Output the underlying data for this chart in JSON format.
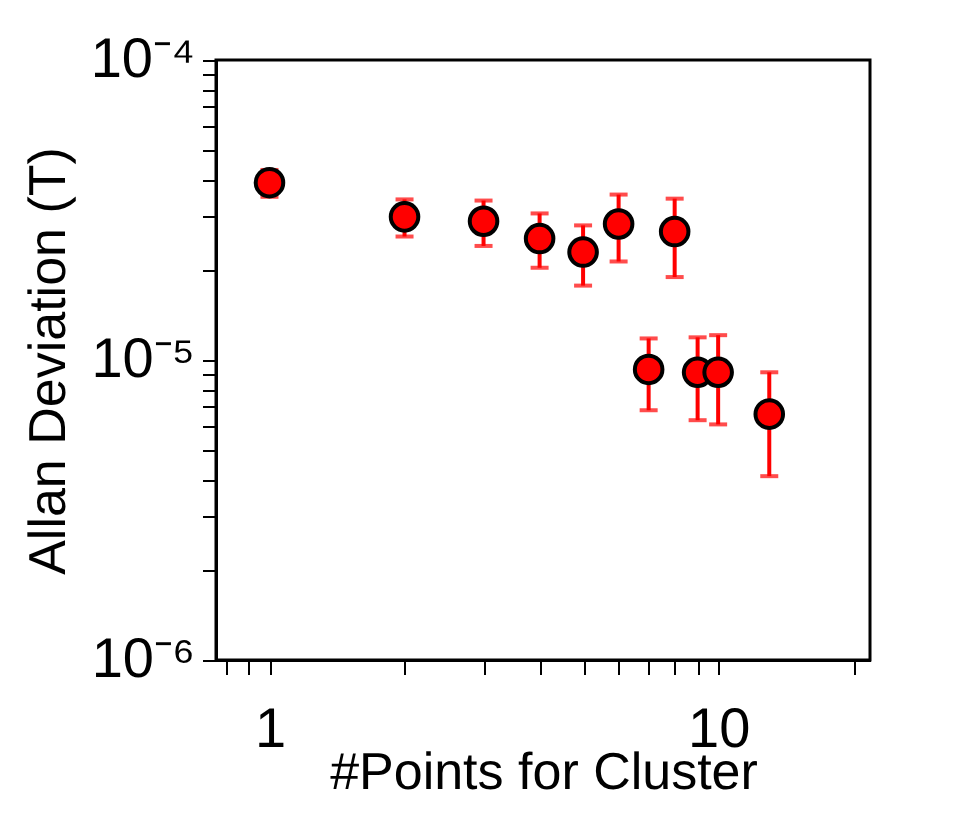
{
  "chart_data": {
    "type": "scatter",
    "xlabel": "#Points for Cluster",
    "ylabel": "Allan Deviation (T)",
    "x": [
      1,
      2,
      3,
      4,
      5,
      6,
      8,
      7,
      9,
      10,
      13
    ],
    "series": [
      {
        "color": "#ff0000",
        "values": [
          3.9e-05,
          3e-05,
          2.9e-05,
          2.54e-05,
          2.29e-05,
          2.84e-05,
          2.68e-05,
          9.3e-06,
          9.1e-06,
          9.1e-06,
          6.6e-06
        ],
        "errors": [
          [
            3.5e-05,
            4.3e-05
          ],
          [
            2.58e-05,
            3.43e-05
          ],
          [
            2.4e-05,
            3.4e-05
          ],
          [
            2.03e-05,
            3.08e-05
          ],
          [
            1.77e-05,
            2.81e-05
          ],
          [
            2.13e-05,
            3.56e-05
          ],
          [
            1.89e-05,
            3.45e-05
          ],
          [
            6.8e-06,
            1.18e-05
          ],
          [
            6.3e-06,
            1.19e-05
          ],
          [
            6.1e-06,
            1.21e-05
          ],
          [
            4.1e-06,
            9.1e-06
          ]
        ]
      }
    ],
    "log": "xy",
    "xlim": [
      0.76,
      21.8
    ],
    "ylim": [
      1e-06,
      0.0001
    ],
    "xticks": [
      {
        "value": 0.8,
        "label": null
      },
      {
        "value": 0.9,
        "label": null
      },
      1,
      {
        "value": 2,
        "label": null
      },
      {
        "value": 3,
        "label": null
      },
      {
        "value": 4,
        "label": null
      },
      {
        "value": 5,
        "label": null
      },
      {
        "value": 6,
        "label": null
      },
      {
        "value": 7,
        "label": null
      },
      {
        "value": 8,
        "label": null
      },
      {
        "value": 9,
        "label": null
      },
      10,
      {
        "value": 20,
        "label": null
      }
    ],
    "yticks": [
      {
        "value": 1e-06,
        "label": "10⁻⁶"
      },
      {
        "value": 2e-06,
        "label": null
      },
      {
        "value": 3e-06,
        "label": null
      },
      {
        "value": 4e-06,
        "label": null
      },
      {
        "value": 5e-06,
        "label": null
      },
      {
        "value": 6e-06,
        "label": null
      },
      {
        "value": 7e-06,
        "label": null
      },
      {
        "value": 8e-06,
        "label": null
      },
      {
        "value": 9e-06,
        "label": null
      },
      {
        "value": 1e-05,
        "label": "10⁻⁵"
      },
      {
        "value": 2e-05,
        "label": null
      },
      {
        "value": 3e-05,
        "label": null
      },
      {
        "value": 4e-05,
        "label": null
      },
      {
        "value": 5e-05,
        "label": null
      },
      {
        "value": 6e-05,
        "label": null
      },
      {
        "value": 7e-05,
        "label": null
      },
      {
        "value": 8e-05,
        "label": null
      },
      {
        "value": 9e-05,
        "label": null
      },
      {
        "value": 0.0001,
        "label": "10⁻⁴"
      }
    ],
    "grid": false,
    "marker": "circle"
  }
}
